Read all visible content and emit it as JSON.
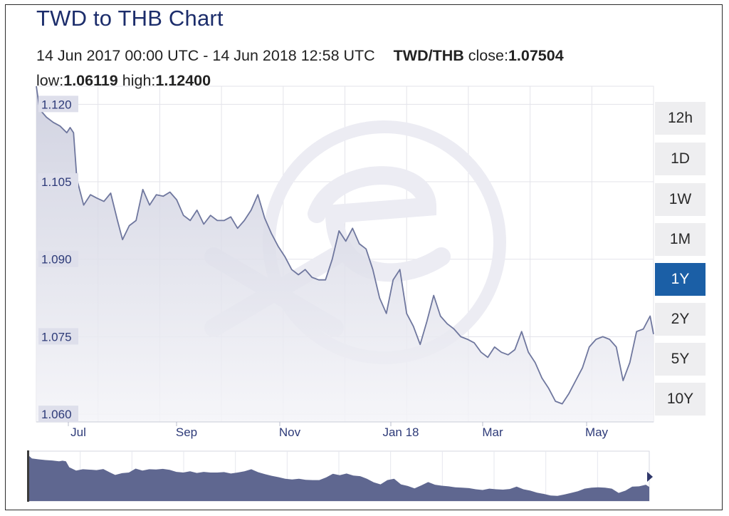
{
  "header": {
    "title": "TWD to THB Chart",
    "date_range": "14 Jun 2017 00:00 UTC - 14 Jun 2018 12:58 UTC",
    "pair": "TWD/THB",
    "close_label": "close:",
    "close_value": "1.07504",
    "low_label": "low:",
    "low_value": "1.06119",
    "high_label": "high:",
    "high_value": "1.12400"
  },
  "range_buttons": [
    {
      "label": "12h",
      "active": false
    },
    {
      "label": "1D",
      "active": false
    },
    {
      "label": "1W",
      "active": false
    },
    {
      "label": "1M",
      "active": false
    },
    {
      "label": "1Y",
      "active": true
    },
    {
      "label": "2Y",
      "active": false
    },
    {
      "label": "5Y",
      "active": false
    },
    {
      "label": "10Y",
      "active": false
    }
  ],
  "colors": {
    "title": "#1c2d6b",
    "line": "#6f779e",
    "area_top": "#c9cbdc",
    "area_bottom": "#f4f4f8",
    "active_button": "#1b5fa6",
    "navigator_fill": "#5f6790",
    "grid": "#e3e3ea",
    "watermark": "#ececf3"
  },
  "watermark_icon": "xe-logo-icon",
  "chart_data": {
    "type": "area",
    "title": "TWD to THB Chart",
    "xlabel": "",
    "ylabel": "",
    "x_tick_labels": [
      "Jul",
      "Sep",
      "Nov",
      "Jan 18",
      "Mar",
      "May"
    ],
    "y_ticks": [
      1.06,
      1.075,
      1.09,
      1.105,
      1.12
    ],
    "y_tick_labels": [
      "1.060",
      "1.075",
      "1.090",
      "1.105",
      "1.120"
    ],
    "ylim": [
      1.0585,
      1.1235
    ],
    "xlim": [
      "2017-06-14",
      "2018-06-14"
    ],
    "grid": true,
    "series": [
      {
        "x": [
          "2017-06-14",
          "2017-06-16",
          "2017-06-20",
          "2017-06-24",
          "2017-06-28",
          "2017-07-02",
          "2017-07-04",
          "2017-07-06",
          "2017-07-08",
          "2017-07-12",
          "2017-07-16",
          "2017-07-20",
          "2017-07-24",
          "2017-07-28",
          "2017-08-01",
          "2017-08-04",
          "2017-08-08",
          "2017-08-12",
          "2017-08-16",
          "2017-08-20",
          "2017-08-24",
          "2017-08-28",
          "2017-09-01",
          "2017-09-05",
          "2017-09-09",
          "2017-09-13",
          "2017-09-17",
          "2017-09-21",
          "2017-09-25",
          "2017-09-29",
          "2017-10-03",
          "2017-10-07",
          "2017-10-11",
          "2017-10-15",
          "2017-10-19",
          "2017-10-23",
          "2017-10-27",
          "2017-10-31",
          "2017-11-04",
          "2017-11-08",
          "2017-11-12",
          "2017-11-16",
          "2017-11-20",
          "2017-11-24",
          "2017-11-28",
          "2017-12-02",
          "2017-12-06",
          "2017-12-10",
          "2017-12-14",
          "2017-12-18",
          "2017-12-22",
          "2017-12-26",
          "2017-12-30",
          "2018-01-03",
          "2018-01-07",
          "2018-01-11",
          "2018-01-15",
          "2018-01-19",
          "2018-01-23",
          "2018-01-27",
          "2018-01-31",
          "2018-02-04",
          "2018-02-08",
          "2018-02-12",
          "2018-02-16",
          "2018-02-20",
          "2018-02-24",
          "2018-02-28",
          "2018-03-04",
          "2018-03-08",
          "2018-03-12",
          "2018-03-16",
          "2018-03-20",
          "2018-03-24",
          "2018-03-28",
          "2018-04-01",
          "2018-04-05",
          "2018-04-09",
          "2018-04-13",
          "2018-04-17",
          "2018-04-21",
          "2018-04-25",
          "2018-04-29",
          "2018-05-03",
          "2018-05-07",
          "2018-05-11",
          "2018-05-15",
          "2018-05-19",
          "2018-05-23",
          "2018-05-27",
          "2018-05-31",
          "2018-06-04",
          "2018-06-08",
          "2018-06-12",
          "2018-06-14"
        ],
        "y": [
          1.1235,
          1.119,
          1.1175,
          1.1165,
          1.1158,
          1.1145,
          1.1155,
          1.1145,
          1.1055,
          1.1005,
          1.1025,
          1.1018,
          1.1012,
          1.1028,
          1.0975,
          1.0938,
          1.0965,
          1.0975,
          1.1035,
          1.1005,
          1.1025,
          1.1022,
          1.103,
          1.1015,
          1.0985,
          1.0975,
          1.0995,
          1.0968,
          1.0985,
          1.0975,
          1.0975,
          1.0982,
          1.096,
          1.0975,
          1.0995,
          1.1025,
          1.098,
          1.095,
          1.0925,
          1.0905,
          1.088,
          1.087,
          1.088,
          1.0865,
          1.086,
          1.086,
          1.09,
          1.0955,
          1.0935,
          1.096,
          1.093,
          1.092,
          1.088,
          1.0825,
          1.0795,
          1.086,
          1.088,
          1.0795,
          1.077,
          1.0735,
          1.078,
          1.083,
          1.079,
          1.0775,
          1.0765,
          1.075,
          1.0745,
          1.0738,
          1.072,
          1.071,
          1.073,
          1.072,
          1.0715,
          1.0725,
          1.076,
          1.072,
          1.07,
          1.067,
          1.065,
          1.0625,
          1.062,
          1.064,
          1.0665,
          1.069,
          1.073,
          1.0745,
          1.075,
          1.0745,
          1.073,
          1.0665,
          1.07,
          1.076,
          1.0765,
          1.079,
          1.0755
        ]
      }
    ]
  }
}
